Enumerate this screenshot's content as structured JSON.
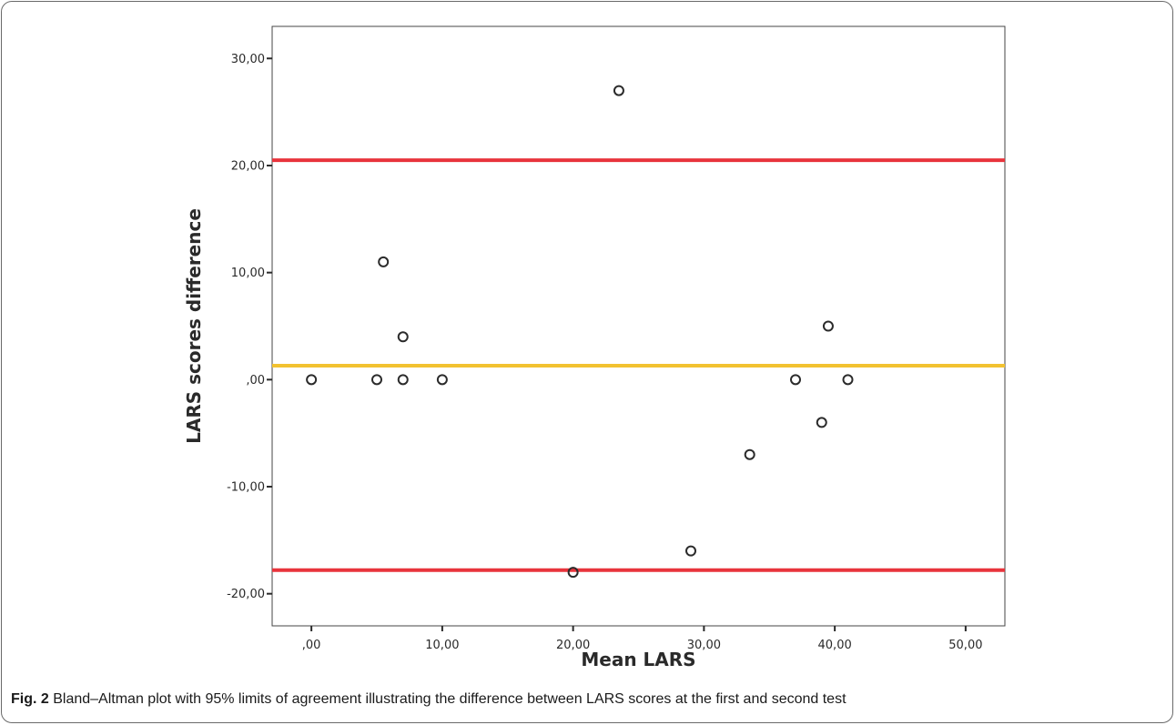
{
  "caption": {
    "label": "Fig. 2",
    "text": "Bland–Altman plot with 95% limits of agreement illustrating the difference between LARS scores at the first and second test"
  },
  "chart_data": {
    "type": "scatter",
    "xlabel": "Mean LARS",
    "ylabel": "LARS scores difference",
    "xlim": [
      -3,
      53
    ],
    "ylim": [
      -23,
      33
    ],
    "x_ticks": [
      0,
      10,
      20,
      30,
      40,
      50
    ],
    "x_tick_labels": [
      ",00",
      "10,00",
      "20,00",
      "30,00",
      "40,00",
      "50,00"
    ],
    "y_ticks": [
      -20,
      -10,
      0,
      10,
      20,
      30
    ],
    "y_tick_labels": [
      "-20,00",
      "-10,00",
      ",00",
      "10,00",
      "20,00",
      "30,00"
    ],
    "grid": false,
    "points": [
      {
        "x": 0,
        "y": 0
      },
      {
        "x": 5,
        "y": 0
      },
      {
        "x": 5.5,
        "y": 11
      },
      {
        "x": 7,
        "y": 4
      },
      {
        "x": 7,
        "y": 0
      },
      {
        "x": 10,
        "y": 0
      },
      {
        "x": 20,
        "y": -18
      },
      {
        "x": 23.5,
        "y": 27
      },
      {
        "x": 29,
        "y": -16
      },
      {
        "x": 33.5,
        "y": -7
      },
      {
        "x": 37,
        "y": 0
      },
      {
        "x": 39,
        "y": -4
      },
      {
        "x": 39.5,
        "y": 5
      },
      {
        "x": 41,
        "y": 0
      }
    ],
    "reference_lines": [
      {
        "y": 20.5,
        "color": "#e8343c"
      },
      {
        "y": 1.3,
        "color": "#f2c230"
      },
      {
        "y": -17.8,
        "color": "#e8343c"
      }
    ],
    "marker_color": "#2b2b2b"
  }
}
